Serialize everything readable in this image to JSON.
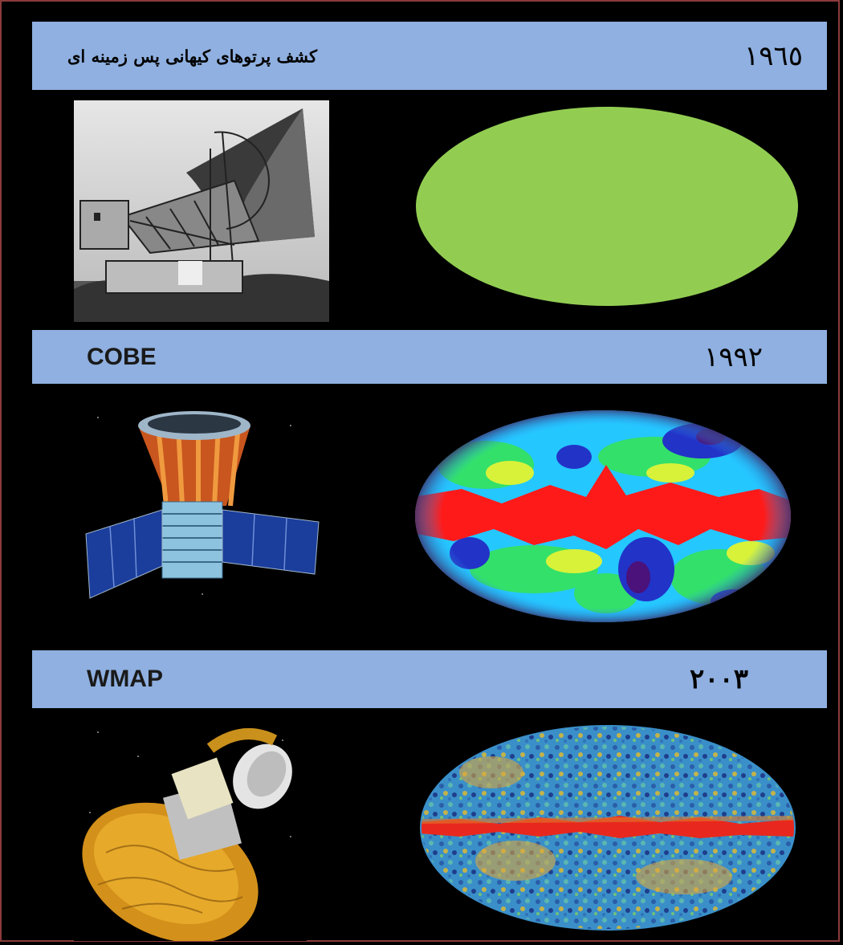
{
  "rows": [
    {
      "year": "١٩٦٥",
      "title": "کشف پرتوهای کیهانی پس زمینه ای",
      "label": ""
    },
    {
      "year": "١٩٩٢",
      "title": "",
      "label": "COBE"
    },
    {
      "year": "٢٠٠٣",
      "title": "",
      "label": "WMAP"
    }
  ],
  "colors": {
    "band": "#8fb0e0",
    "background": "#000000",
    "uniform_map": "#92cd52"
  }
}
